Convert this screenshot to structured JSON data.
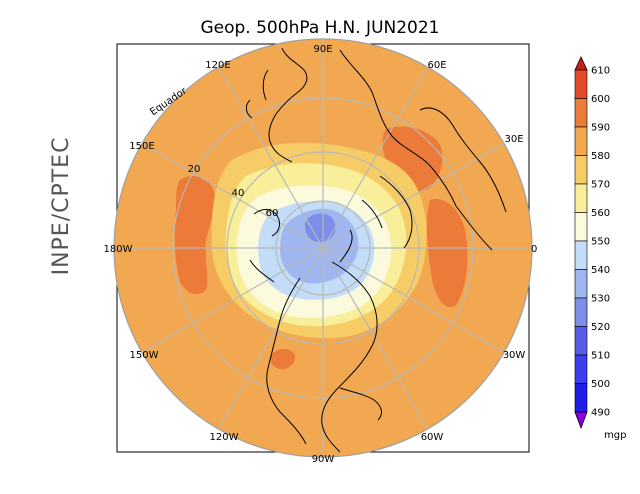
{
  "title": "Geop. 500hPa H.N. JUN2021",
  "credit": "INPE/CPTEC",
  "longitude_labels": [
    "90E",
    "60E",
    "30E",
    "0",
    "30W",
    "60W",
    "90W",
    "120W",
    "150W",
    "180W",
    "150E",
    "120E"
  ],
  "latitude_labels": [
    "20",
    "40",
    "60"
  ],
  "equator_label": "Equador",
  "colorbar": {
    "unit": "mgp",
    "levels": [
      "490",
      "500",
      "510",
      "520",
      "530",
      "540",
      "550",
      "560",
      "570",
      "580",
      "590",
      "600",
      "610"
    ],
    "colors": [
      "#8a00e0",
      "#1e1ee8",
      "#3d3df0",
      "#5a5ae8",
      "#7d8de8",
      "#9fb6f0",
      "#c3dcf8",
      "#fbfadc",
      "#f9ee9a",
      "#f6cc66",
      "#f2a850",
      "#ec7a38",
      "#e44a28",
      "#c81e14"
    ]
  },
  "colors": {
    "background_field": "#f2a850",
    "grid": "#b8b8b8",
    "coast": "#000000"
  }
}
